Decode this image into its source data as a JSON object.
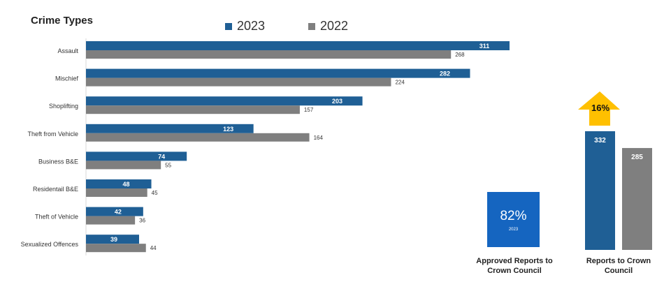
{
  "chart_data": [
    {
      "type": "bar",
      "orientation": "horizontal",
      "title": "Crime Types",
      "categories": [
        "Assault",
        "Mischief",
        "Shoplifting",
        "Theft from Vehicle",
        "Business B&E",
        "Residentail B&E",
        "Theft of Vehicle",
        "Sexualized Offences"
      ],
      "series": [
        {
          "name": "2023",
          "color": "#1f5f95",
          "values": [
            311,
            282,
            203,
            123,
            74,
            48,
            42,
            39
          ]
        },
        {
          "name": "2022",
          "color": "#7f7f7f",
          "values": [
            268,
            224,
            157,
            164,
            55,
            45,
            36,
            44
          ]
        }
      ],
      "legend": "top",
      "grid": false,
      "xlim": [
        0,
        420
      ]
    },
    {
      "type": "bar",
      "title": "",
      "caption": "Reports to Crown Council",
      "categories": [
        "2023",
        "2022"
      ],
      "values": [
        332,
        285
      ],
      "colors": [
        "#1f5f95",
        "#7f7f7f"
      ],
      "change_label": "16%",
      "change_direction": "up",
      "arrow_color": "#ffc000"
    }
  ],
  "kpi": {
    "value": "82%",
    "year": "2023",
    "caption": "Approved Reports to Crown Council",
    "color": "#1565c0"
  }
}
